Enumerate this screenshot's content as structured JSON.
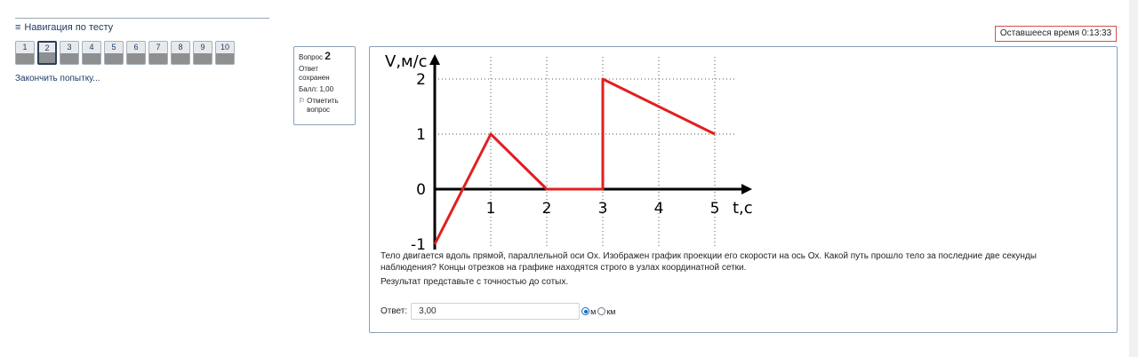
{
  "navigation": {
    "title": "Навигация по тесту",
    "buttons": [
      "1",
      "2",
      "3",
      "4",
      "5",
      "6",
      "7",
      "8",
      "9",
      "10"
    ],
    "current": "2",
    "finish_link": "Закончить попытку..."
  },
  "timer": {
    "label": "Оставшееся время 0:13:33"
  },
  "question_info": {
    "label": "Вопрос",
    "number": "2",
    "status": "Ответ сохранен",
    "points": "Балл: 1,00",
    "flag_label": "Отметить вопрос"
  },
  "chart_data": {
    "type": "line",
    "ylabel": "V,м/с",
    "xlabel": "t,c",
    "x_ticks": [
      "1",
      "2",
      "3",
      "4",
      "5"
    ],
    "y_ticks": [
      "2",
      "1",
      "0",
      "-1"
    ],
    "xlim": [
      0,
      5
    ],
    "ylim": [
      -1,
      2
    ],
    "grid": "dotted",
    "series": [
      {
        "color": "#e02020",
        "points": [
          [
            0,
            -1
          ],
          [
            1,
            1
          ],
          [
            2,
            0
          ],
          [
            3,
            0
          ],
          [
            3,
            2
          ],
          [
            5,
            1
          ]
        ]
      }
    ]
  },
  "question": {
    "text": "Тело двигается вдоль прямой, параллельной оси Ох. Изображен график проекции его скорости на ось Ох. Какой путь прошло тело за последние две секунды наблюдения?  Концы отрезков на графике находятся строго в узлах координатной сетки.",
    "note": "Результат представьте с точностью до сотых."
  },
  "answer": {
    "label": "Ответ:",
    "value": "3,00",
    "unit_m": "м",
    "unit_km": "км",
    "selected_unit": "м"
  }
}
